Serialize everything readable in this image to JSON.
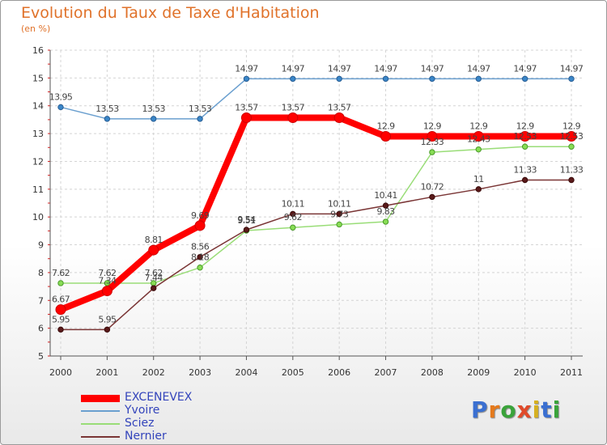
{
  "title": "Evolution du Taux de Taxe d'Habitation",
  "subtitle": "(en %)",
  "logo": {
    "text": "Proxiti",
    "letter_colors": [
      "#3a6fd1",
      "#e57a1c",
      "#3aa33a",
      "#e04a2a",
      "#d6b020",
      "#3a6fd1",
      "#3aa33a"
    ]
  },
  "chart_data": {
    "type": "line",
    "x": [
      "2000",
      "2001",
      "2002",
      "2003",
      "2004",
      "2005",
      "2006",
      "2007",
      "2008",
      "2009",
      "2010",
      "2011"
    ],
    "ylim": [
      5,
      16
    ],
    "yticks": [
      "5",
      "6",
      "7",
      "8",
      "9",
      "10",
      "11",
      "12",
      "13",
      "14",
      "15",
      "16"
    ],
    "grid": true,
    "legend_position": "bottom-left",
    "series": [
      {
        "name": "EXCENEVEX",
        "color": "#ff0000",
        "values": [
          6.67,
          7.34,
          8.81,
          9.69,
          13.57,
          13.57,
          13.57,
          12.9,
          12.9,
          12.9,
          12.9,
          12.9
        ],
        "labels": [
          "6.67",
          "7.34",
          "8.81",
          "9.69",
          "13.57",
          "13.57",
          "13.57",
          "12.9",
          "12.9",
          "12.9",
          "12.9",
          "12.9"
        ]
      },
      {
        "name": "Yvoire",
        "color": "#6a9fcf",
        "values": [
          13.95,
          13.53,
          13.53,
          13.53,
          14.97,
          14.97,
          14.97,
          14.97,
          14.97,
          14.97,
          14.97,
          14.97
        ],
        "labels": [
          "13.95",
          "13.53",
          "13.53",
          "13.53",
          "14.97",
          "14.97",
          "14.97",
          "14.97",
          "14.97",
          "14.97",
          "14.97",
          "14.97"
        ]
      },
      {
        "name": "Sciez",
        "color": "#99dd77",
        "values": [
          7.62,
          7.62,
          7.62,
          8.18,
          9.51,
          9.62,
          9.73,
          9.83,
          12.33,
          12.43,
          12.53,
          12.53
        ],
        "labels": [
          "7.62",
          "7.62",
          "7.62",
          "8.18",
          "9.51",
          "9.62",
          "9.73",
          "9.83",
          "12.33",
          "12.43",
          "12.53",
          "12.53"
        ]
      },
      {
        "name": "Nernier",
        "color": "#7a3535",
        "values": [
          5.95,
          5.95,
          7.44,
          8.56,
          9.54,
          10.11,
          10.11,
          10.41,
          10.72,
          11,
          11.33,
          11.33
        ],
        "labels": [
          "5.95",
          "5.95",
          "7.44",
          "8.56",
          "9.54",
          "10.11",
          "10.11",
          "10.41",
          "10.72",
          "11",
          "11.33",
          "11.33"
        ]
      }
    ]
  }
}
